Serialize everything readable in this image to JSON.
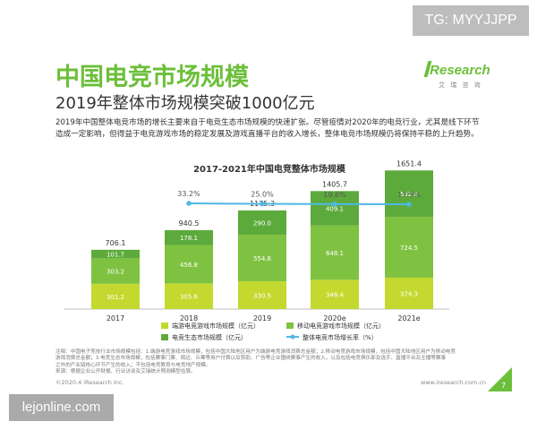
{
  "badge": "TG: MYYJJPP",
  "header": {
    "title": "中国电竞市场规模",
    "subtitle": "2019年整体市场规模突破1000亿元"
  },
  "logo": {
    "text": "iResearch",
    "cn": "艾 瑞 咨 询"
  },
  "intro": "2019年中国整体电竞市场的增长主要来自于电竞生态市场规模的快速扩张。尽管疫情对2020年的电竞行业，尤其是线下环节造成一定影响，但得益于电竞游戏市场的稳定发展及游戏直播平台的收入增长，整体电竞市场规模仍将保持平稳的上升趋势。",
  "chart_data": {
    "type": "bar",
    "stacked": true,
    "title": "2017-2021年中国电竞整体市场规模",
    "categories": [
      "2017",
      "2018",
      "2019",
      "2020e",
      "2021e"
    ],
    "series": [
      {
        "name": "端游电竞游戏市场规模（亿元）",
        "values": [
          301.2,
          305.6,
          330.5,
          348.4,
          374.3
        ],
        "color": "#c3d92f"
      },
      {
        "name": "移动电竞游戏市场规模（亿元）",
        "values": [
          303.2,
          456.8,
          554.8,
          648.1,
          724.5
        ],
        "color": "#7fc241"
      },
      {
        "name": "电竞生态市场规模（亿元）",
        "values": [
          101.7,
          178.1,
          290.0,
          409.1,
          552.6
        ],
        "color": "#5daa3c"
      }
    ],
    "totals": [
      706.1,
      940.5,
      1175.3,
      1405.7,
      1651.4
    ],
    "growth": {
      "name": "整体电竞市场增长率（%）",
      "labels": [
        "33.2%",
        "25.0%",
        "19.6%",
        "17.5%"
      ],
      "values": [
        33.2,
        25.0,
        19.6,
        17.5
      ],
      "color": "#4fb8e6"
    },
    "legend_position": "bottom"
  },
  "footnote": {
    "lines": [
      "注释：中国电子竞技行业市场规模包括：1.端游电竞游戏市场规模，包括中国大陆地区用户为端游电竞游戏消费总金额；2.移动电竞游戏市场规模，包括中国大陆地区用户为移动电竞",
      "游戏消费总金额；3.电竞生态市场规模，包括赛事门票、周边、众筹等用户付费以及赞助、广告等企业围绕赛事产生的收入，以及包括电竞俱乐部及选手、直播平台及主播等赛事",
      "之外的产业链核心环节产生的收入；不包括电竞教育与电竞地产规模。",
      "来源：根据企业公开财报、行业访谈及艾瑞统计预测模型估算。"
    ]
  },
  "footer": {
    "left": "©2020.4 iResearch Inc.",
    "right": "www.iresearch.com.cn",
    "page": "7"
  },
  "watermark": "lejonline.com"
}
